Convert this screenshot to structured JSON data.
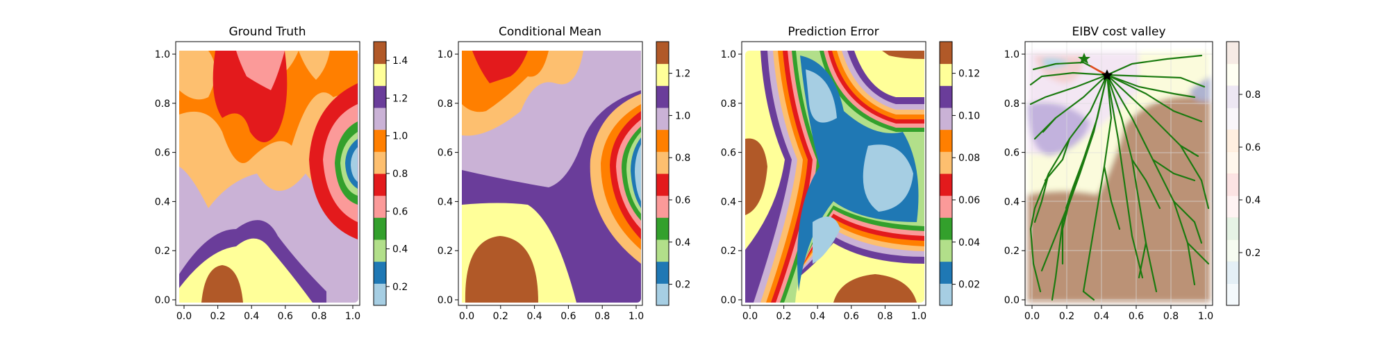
{
  "figure": {
    "panels": [
      {
        "title": "Ground Truth"
      },
      {
        "title": "Conditional Mean"
      },
      {
        "title": "Prediction Error"
      },
      {
        "title": "EIBV cost valley"
      }
    ]
  },
  "chart_data": [
    {
      "type": "heatmap",
      "title": "Ground Truth",
      "colormap": "Paired",
      "xlim": [
        0.0,
        1.0
      ],
      "ylim": [
        0.0,
        1.0
      ],
      "x_ticks": [
        "0.0",
        "0.2",
        "0.4",
        "0.6",
        "0.8",
        "1.0"
      ],
      "y_ticks": [
        "0.0",
        "0.2",
        "0.4",
        "0.6",
        "0.8",
        "1.0"
      ],
      "colorbar": {
        "min": 0.1,
        "max": 1.5,
        "ticks": [
          0.2,
          0.4,
          0.6,
          0.8,
          1.0,
          1.2,
          1.4
        ],
        "tick_labels": [
          "0.2",
          "0.4",
          "0.6",
          "0.8",
          "1.0",
          "1.2",
          "1.4"
        ]
      }
    },
    {
      "type": "heatmap",
      "title": "Conditional Mean",
      "colormap": "Paired",
      "xlim": [
        0.0,
        1.0
      ],
      "ylim": [
        0.0,
        1.0
      ],
      "x_ticks": [
        "0.0",
        "0.2",
        "0.4",
        "0.6",
        "0.8",
        "1.0"
      ],
      "y_ticks": [
        "0.0",
        "0.2",
        "0.4",
        "0.6",
        "0.8",
        "1.0"
      ],
      "colorbar": {
        "min": 0.1,
        "max": 1.35,
        "ticks": [
          0.2,
          0.4,
          0.6,
          0.8,
          1.0,
          1.2
        ],
        "tick_labels": [
          "0.2",
          "0.4",
          "0.6",
          "0.8",
          "1.0",
          "1.2"
        ]
      }
    },
    {
      "type": "heatmap",
      "title": "Prediction Error",
      "colormap": "Paired",
      "xlim": [
        0.0,
        1.0
      ],
      "ylim": [
        0.0,
        1.0
      ],
      "x_ticks": [
        "0.0",
        "0.2",
        "0.4",
        "0.6",
        "0.8",
        "1.0"
      ],
      "y_ticks": [
        "0.0",
        "0.2",
        "0.4",
        "0.6",
        "0.8",
        "1.0"
      ],
      "colorbar": {
        "min": 0.01,
        "max": 0.135,
        "ticks": [
          0.02,
          0.04,
          0.06,
          0.08,
          0.1,
          0.12
        ],
        "tick_labels": [
          "0.02",
          "0.04",
          "0.06",
          "0.08",
          "0.10",
          "0.12"
        ]
      }
    },
    {
      "type": "heatmap",
      "title": "EIBV cost valley",
      "colormap": "Paired (faded)",
      "xlim": [
        0.0,
        1.0
      ],
      "ylim": [
        0.0,
        1.0
      ],
      "x_ticks": [
        "0.0",
        "0.2",
        "0.4",
        "0.6",
        "0.8",
        "1.0"
      ],
      "y_ticks": [
        "0.0",
        "0.2",
        "0.4",
        "0.6",
        "0.8",
        "1.0"
      ],
      "grid": true,
      "colorbar": {
        "min": 0.0,
        "max": 1.0,
        "ticks": [
          0.2,
          0.4,
          0.6,
          0.8
        ],
        "tick_labels": [
          "0.2",
          "0.4",
          "0.6",
          "0.8"
        ]
      },
      "overlay": {
        "tree_color": "#1a7a0f",
        "root": [
          0.43,
          0.91
        ],
        "start_marker": [
          0.3,
          0.97
        ],
        "path": [
          [
            0.3,
            0.97
          ],
          [
            0.36,
            0.95
          ],
          [
            0.43,
            0.91
          ]
        ]
      }
    }
  ],
  "colors": {
    "paired": [
      "#a6cee3",
      "#1f78b4",
      "#b2df8a",
      "#33a02c",
      "#fb9a99",
      "#e31a1c",
      "#fdbf6f",
      "#ff7f00",
      "#cab2d6",
      "#6a3d9a",
      "#ffff99",
      "#b15928"
    ],
    "tree": "#1a7a0f",
    "path": "#e34a1c"
  }
}
